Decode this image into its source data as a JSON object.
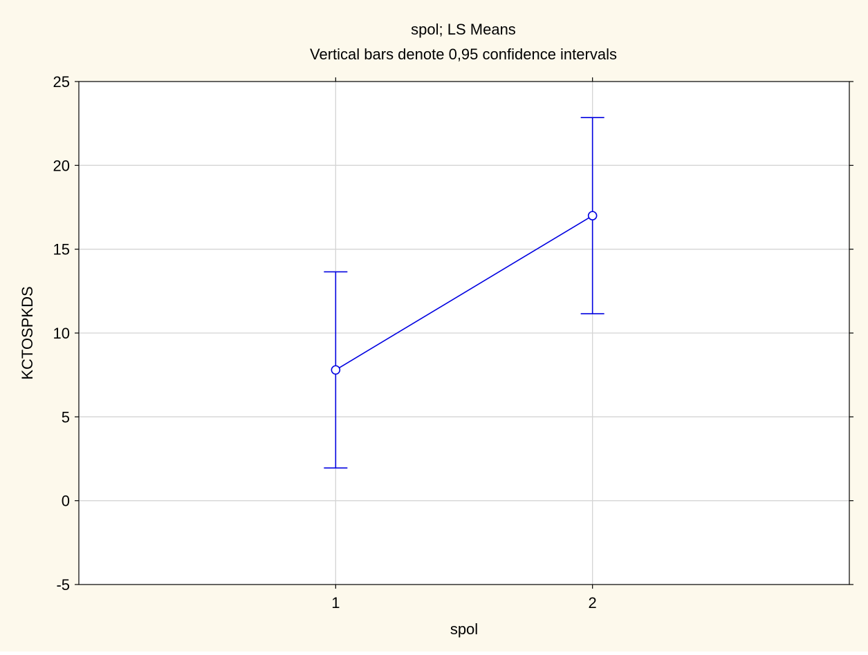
{
  "chart_data": {
    "type": "line",
    "title": "spol; LS Means",
    "subtitle": "Vertical bars denote 0,95 confidence intervals",
    "xlabel": "spol",
    "ylabel": "KCTOSPKDS",
    "categories": [
      "1",
      "2"
    ],
    "series": [
      {
        "values": [
          7.8,
          17.0
        ],
        "ci_lower": [
          1.95,
          11.15
        ],
        "ci_upper": [
          13.65,
          22.85
        ]
      }
    ],
    "ylim": [
      -5,
      25
    ],
    "yticks": [
      "-5",
      "0",
      "5",
      "10",
      "15",
      "20",
      "25"
    ],
    "grid": true,
    "legend": "none",
    "colors": {
      "background": "#fdf9ec",
      "plot_area": "#ffffff",
      "series": "#0000e0",
      "grid": "#d4d4d4",
      "axis": "#000000"
    }
  }
}
